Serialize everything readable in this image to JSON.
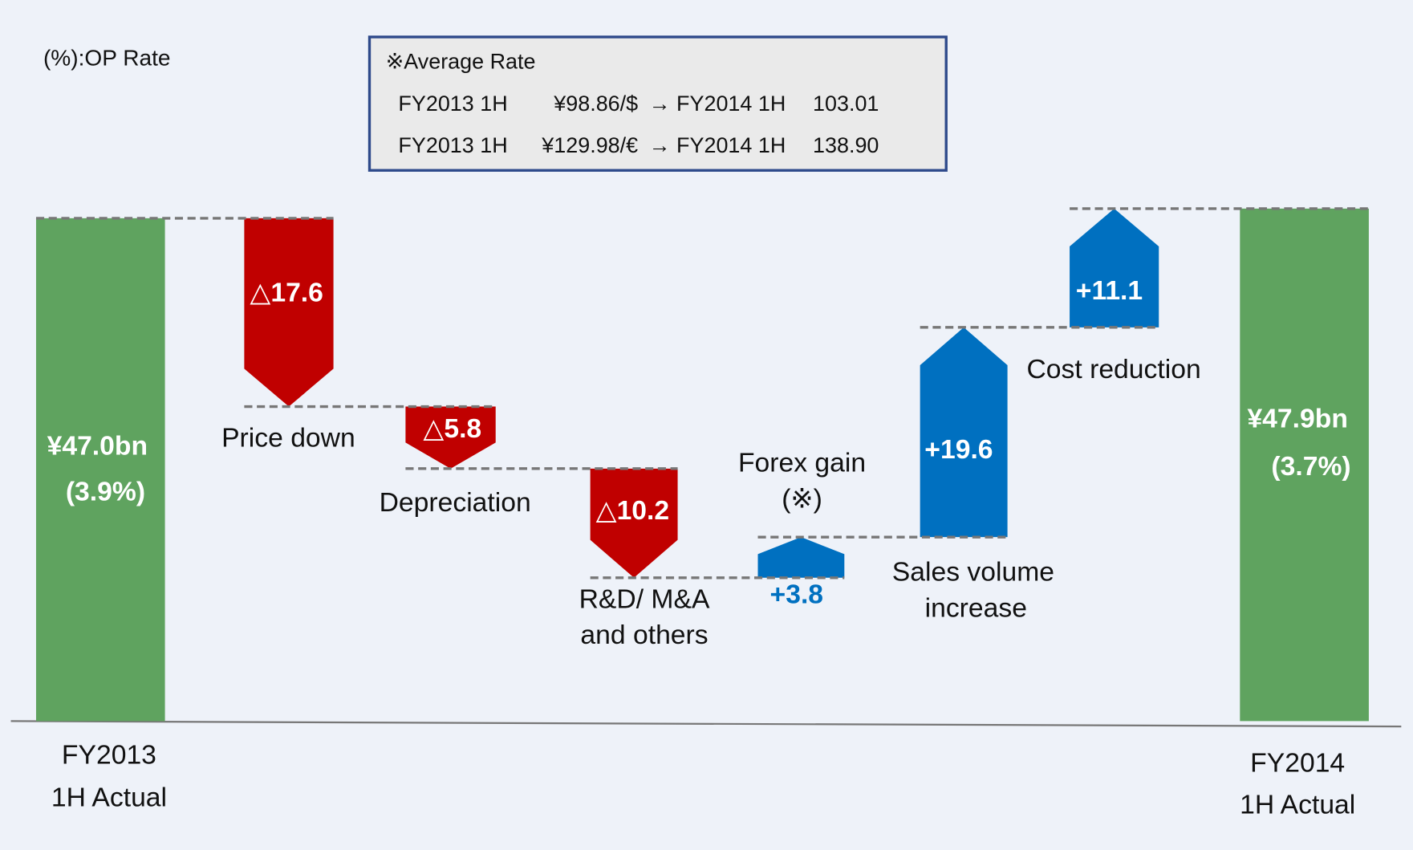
{
  "chart_data": {
    "type": "waterfall",
    "note": "(%):OP Rate",
    "rate_box": {
      "title": "※Average Rate",
      "rows": [
        [
          "FY2013 1H",
          "¥98.86/$",
          "→ FY2014 1H",
          "103.01"
        ],
        [
          "FY2013 1H",
          "¥129.98/€",
          "→ FY2014 1H",
          "138.90"
        ]
      ]
    },
    "categories": [
      [
        "FY2013",
        "1H Actual"
      ],
      [
        "Price down"
      ],
      [
        "Depreciation"
      ],
      [
        "R&D/ M&A",
        "and  others"
      ],
      [
        "Forex gain",
        "(※)"
      ],
      [
        "Sales volume",
        "increase"
      ],
      [
        "Cost reduction"
      ],
      [
        "FY2014",
        "1H Actual"
      ]
    ],
    "measure": [
      "total",
      "relative",
      "relative",
      "relative",
      "relative",
      "relative",
      "relative",
      "total"
    ],
    "values": [
      47.0,
      -17.6,
      -5.8,
      -10.2,
      3.8,
      19.6,
      11.1,
      47.9
    ],
    "value_labels": [
      "¥47.0bn",
      "△17.6",
      "△5.8",
      "△10.2",
      "+3.8",
      "+19.6",
      "+11.1",
      "¥47.9bn"
    ],
    "op_rate": [
      3.9,
      null,
      null,
      null,
      null,
      null,
      null,
      3.7
    ],
    "op_rate_labels": [
      "(3.9%)",
      null,
      null,
      null,
      null,
      null,
      null,
      "(3.7%)"
    ],
    "colors": {
      "total": "#5fa35f",
      "decrease": "#c00000",
      "increase": "#0070c0"
    }
  }
}
